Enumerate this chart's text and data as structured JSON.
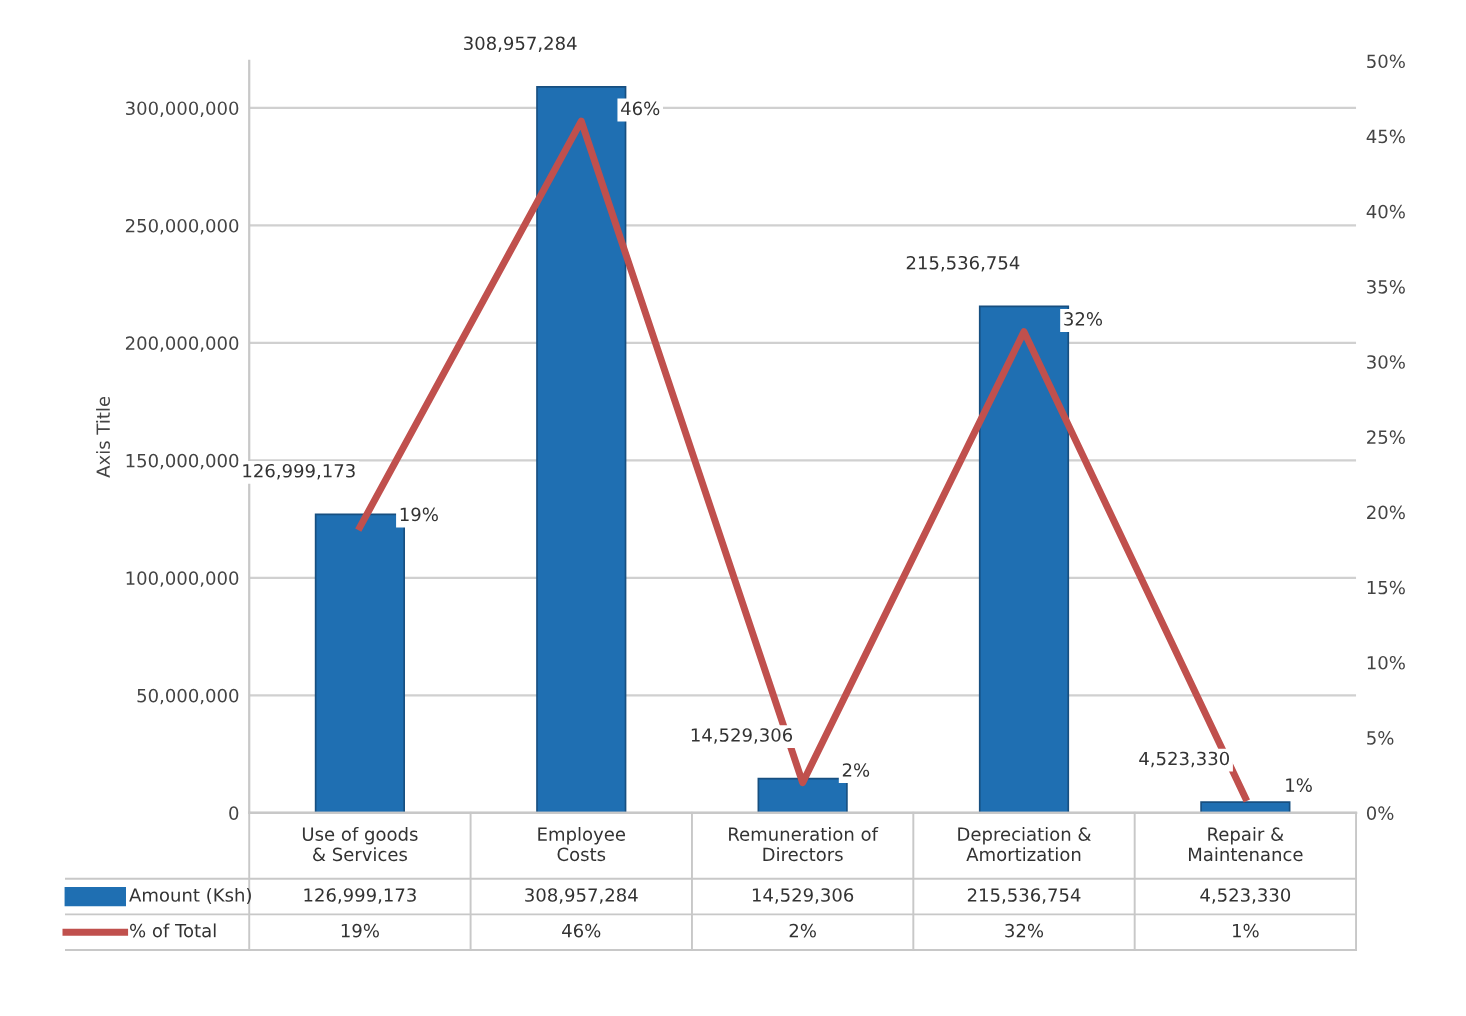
{
  "chart_data": {
    "type": "bar",
    "ylabel": "Axis Title",
    "categories": [
      "Use of goods & Services",
      "Employee Costs",
      "Remuneration of Directors",
      "Depreciation & Amortization",
      "Repair & Maintenance"
    ],
    "series": [
      {
        "name": "Amount (Ksh)",
        "color": "#1f6fb2",
        "values": [
          126999173,
          308957284,
          14529306,
          215536754,
          4523330
        ],
        "value_labels": [
          "126,999,173",
          "308,957,284",
          "14,529,306",
          "215,536,754",
          "4,523,330"
        ]
      },
      {
        "name": "% of Total",
        "type": "line",
        "axis": "y2",
        "color": "#c0504d",
        "values": [
          19,
          46,
          2,
          32,
          1
        ],
        "value_labels": [
          "19%",
          "46%",
          "2%",
          "32%",
          "1%"
        ]
      }
    ],
    "ylim": [
      0,
      320000000
    ],
    "yticks": [
      {
        "value": 0,
        "label": "0"
      },
      {
        "value": 50000000,
        "label": "50,000,000"
      },
      {
        "value": 100000000,
        "label": "100,000,000"
      },
      {
        "value": 150000000,
        "label": "150,000,000"
      },
      {
        "value": 200000000,
        "label": "200,000,000"
      },
      {
        "value": 250000000,
        "label": "250,000,000"
      },
      {
        "value": 300000000,
        "label": "300,000,000"
      }
    ],
    "y2lim": [
      0,
      50
    ],
    "y2ticks": [
      {
        "value": 0,
        "label": "0%"
      },
      {
        "value": 5,
        "label": "5%"
      },
      {
        "value": 10,
        "label": "10%"
      },
      {
        "value": 15,
        "label": "15%"
      },
      {
        "value": 20,
        "label": "20%"
      },
      {
        "value": 25,
        "label": "25%"
      },
      {
        "value": 30,
        "label": "30%"
      },
      {
        "value": 35,
        "label": "35%"
      },
      {
        "value": 40,
        "label": "40%"
      },
      {
        "value": 45,
        "label": "45%"
      },
      {
        "value": 50,
        "label": "50%"
      }
    ],
    "grid": "y",
    "legend": "bottom",
    "marker": "none",
    "line_style": "solid"
  }
}
